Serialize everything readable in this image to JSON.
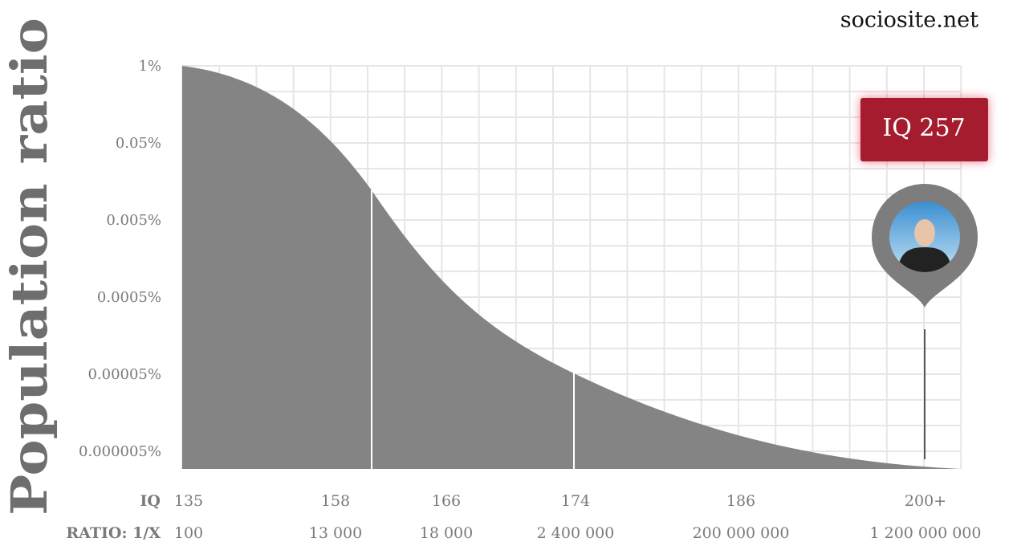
{
  "site": "sociosite.net",
  "y_axis_title": "Population ratio",
  "y_ticks": [
    "1%",
    "0.05%",
    "0.005%",
    "0.0005%",
    "0.00005%",
    "0.000005%"
  ],
  "iq_row": {
    "label": "IQ",
    "values": [
      "135",
      "158",
      "166",
      "174",
      "186",
      "200+"
    ]
  },
  "ratio_row": {
    "label": "RATIO: 1/X",
    "values": [
      "100",
      "13 000",
      "18 000",
      "2 400 000",
      "200 000 000",
      "1 200 000 000"
    ]
  },
  "badge": "IQ 257"
}
